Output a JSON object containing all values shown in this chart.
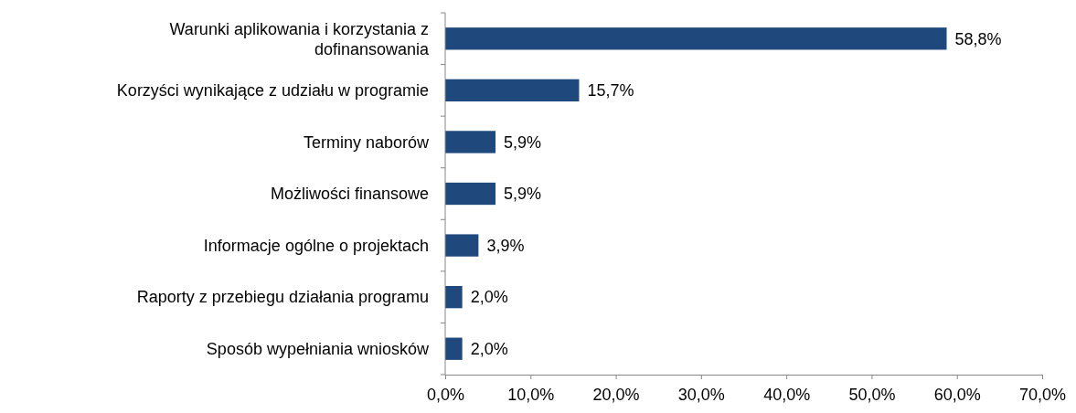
{
  "chart_data": {
    "type": "bar",
    "orientation": "horizontal",
    "categories": [
      "Warunki aplikowania i korzystania z dofinansowania",
      "Korzyści wynikające z udziału w programie",
      "Terminy naborów",
      "Możliwości finansowe",
      "Informacje ogólne o projektach",
      "Raporty z przebiegu działania programu",
      "Sposób wypełniania wniosków"
    ],
    "values": [
      58.8,
      15.7,
      5.9,
      5.9,
      3.9,
      2.0,
      2.0
    ],
    "value_labels": [
      "58,8%",
      "15,7%",
      "5,9%",
      "5,9%",
      "3,9%",
      "2,0%",
      "2,0%"
    ],
    "color": "#1f497d",
    "xlim": [
      0,
      70
    ],
    "xticks": [
      {
        "value": 0,
        "label": "0,0%"
      },
      {
        "value": 10,
        "label": "10,0%"
      },
      {
        "value": 20,
        "label": "20,0%"
      },
      {
        "value": 30,
        "label": "30,0%"
      },
      {
        "value": 40,
        "label": "40,0%"
      },
      {
        "value": 50,
        "label": "50,0%"
      },
      {
        "value": 60,
        "label": "60,0%"
      },
      {
        "value": 70,
        "label": "70,0%"
      }
    ],
    "grid": false
  }
}
